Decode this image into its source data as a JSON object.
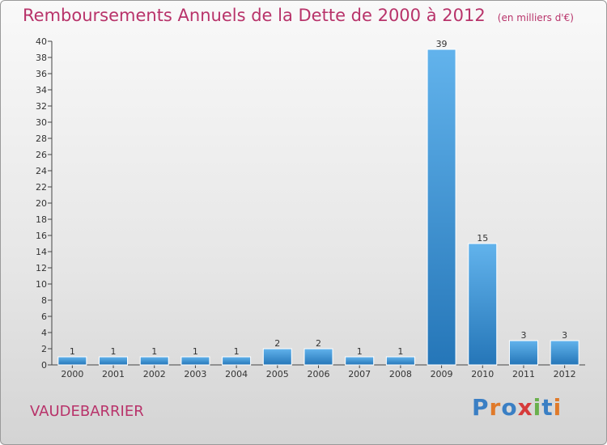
{
  "title": "Remboursements Annuels de la Dette de 2000 à 2012",
  "unit_note": "(en milliers d'€)",
  "location": "VAUDEBARRIER",
  "logo": {
    "text": "Proxiti",
    "colors": [
      "#3a7fc4",
      "#e07a2a",
      "#3a7fc4",
      "#d63a3a",
      "#6ab04c",
      "#3a7fc4",
      "#e07a2a"
    ]
  },
  "colors": {
    "title": "#b8336a",
    "bar_light": "#62b3ec",
    "bar_dark": "#2576b8"
  },
  "chart_data": {
    "type": "bar",
    "categories": [
      "2000",
      "2001",
      "2002",
      "2003",
      "2004",
      "2005",
      "2006",
      "2007",
      "2008",
      "2009",
      "2010",
      "2011",
      "2012"
    ],
    "values": [
      1,
      1,
      1,
      1,
      1,
      2,
      2,
      1,
      1,
      39,
      15,
      3,
      3
    ],
    "ylim": [
      0,
      40
    ],
    "yticks": [
      0,
      2,
      4,
      6,
      8,
      10,
      12,
      14,
      16,
      18,
      20,
      22,
      24,
      26,
      28,
      30,
      32,
      34,
      36,
      38,
      40
    ],
    "grid": false,
    "data_labels": true
  }
}
